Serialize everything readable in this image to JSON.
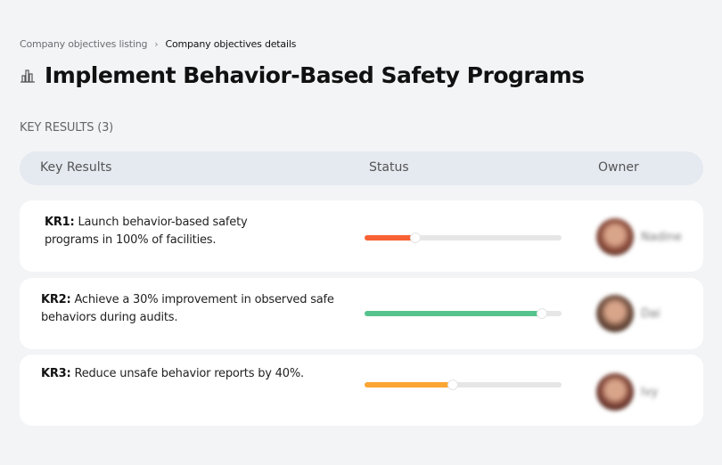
{
  "breadcrumb": {
    "parent": "Company objectives listing",
    "separator": "›",
    "current": "Company objectives details"
  },
  "title": "Implement Behavior-Based Safety Programs",
  "title_icon": "building-chart-icon",
  "section_label": "KEY RESULTS (3)",
  "table": {
    "columns": [
      "Key Results",
      "Status",
      "Owner"
    ]
  },
  "key_results": [
    {
      "id": "KR1:",
      "text": " Launch behavior-based safety programs in 100% of facilities.",
      "progress": 26,
      "color": "#f86134",
      "owner": "Nadine",
      "avatar_color": "#8a4a3a"
    },
    {
      "id": "KR2:",
      "text": " Achieve a 30% improvement in observed safe behaviors during audits.",
      "progress": 90,
      "color": "#55c38d",
      "owner": "Dai",
      "avatar_color": "#6b4a3a"
    },
    {
      "id": "KR3:",
      "text": " Reduce unsafe behavior reports by 40%.",
      "progress": 45,
      "color": "#fba532",
      "owner": "Ivy",
      "avatar_color": "#7a4034"
    }
  ]
}
